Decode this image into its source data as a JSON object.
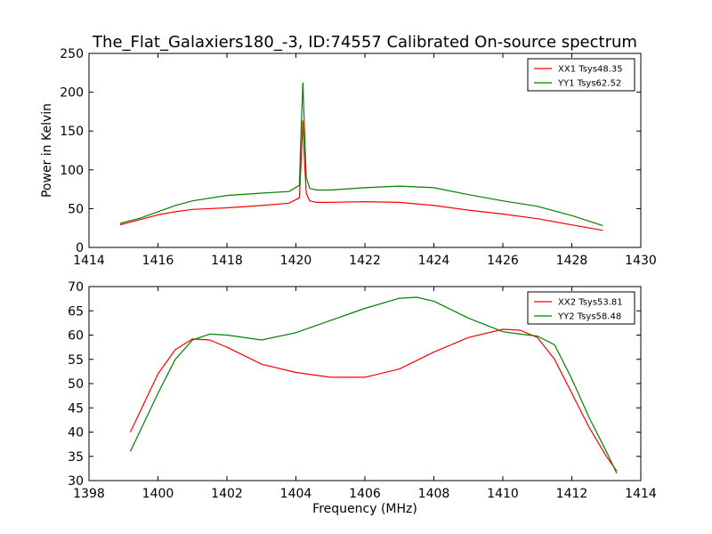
{
  "figure": {
    "title": "The_Flat_Galaxiers180_-3, ID:74557 Calibrated On-source spectrum",
    "xlabel": "Frequency (MHz)",
    "ylabel": "Power in Kelvin"
  },
  "chart_data": [
    {
      "type": "line",
      "xlabel": "",
      "ylabel": "Power in Kelvin",
      "xlim": [
        1414,
        1430
      ],
      "ylim": [
        0,
        250
      ],
      "xticks": [
        1414,
        1416,
        1418,
        1420,
        1422,
        1424,
        1426,
        1428,
        1430
      ],
      "yticks": [
        0,
        50,
        100,
        150,
        200,
        250
      ],
      "grid": false,
      "legend_position": "top-right",
      "series": [
        {
          "name": "XX1 Tsys48.35",
          "color": "#ff0000",
          "x": [
            1414.9,
            1415.5,
            1416,
            1416.5,
            1417,
            1418,
            1419,
            1419.8,
            1420.1,
            1420.15,
            1420.2,
            1420.25,
            1420.3,
            1420.4,
            1420.6,
            1421,
            1422,
            1423,
            1424,
            1425,
            1426,
            1427,
            1428,
            1428.9
          ],
          "y": [
            29,
            36,
            42,
            46,
            49,
            51,
            54,
            57,
            64,
            110,
            163,
            110,
            70,
            60,
            58,
            58,
            59,
            58,
            54,
            48,
            43,
            37,
            29,
            22
          ]
        },
        {
          "name": "YY1 Tsys62.52",
          "color": "#008000",
          "x": [
            1414.9,
            1415.5,
            1416,
            1416.5,
            1417,
            1418,
            1419,
            1419.8,
            1420.1,
            1420.15,
            1420.2,
            1420.25,
            1420.3,
            1420.4,
            1420.6,
            1421,
            1422,
            1423,
            1424,
            1425,
            1426,
            1427,
            1428,
            1428.9
          ],
          "y": [
            31,
            38,
            46,
            54,
            60,
            67,
            70,
            72,
            80,
            150,
            212,
            150,
            90,
            76,
            74,
            74,
            77,
            79,
            77,
            68,
            60,
            53,
            41,
            28
          ]
        }
      ]
    },
    {
      "type": "line",
      "xlabel": "Frequency (MHz)",
      "ylabel": "",
      "xlim": [
        1398,
        1414
      ],
      "ylim": [
        30,
        70
      ],
      "xticks": [
        1398,
        1400,
        1402,
        1404,
        1406,
        1408,
        1410,
        1412,
        1414
      ],
      "yticks": [
        30,
        35,
        40,
        45,
        50,
        55,
        60,
        65,
        70
      ],
      "grid": false,
      "legend_position": "top-right",
      "series": [
        {
          "name": "XX2 Tsys53.81",
          "color": "#ff0000",
          "x": [
            1399.2,
            1399.6,
            1400,
            1400.5,
            1401,
            1401.5,
            1402,
            1403,
            1404,
            1405,
            1406,
            1407,
            1408,
            1409,
            1410,
            1410.5,
            1411,
            1411.5,
            1412,
            1412.5,
            1413,
            1413.3
          ],
          "y": [
            40,
            46,
            52,
            57,
            59.2,
            59,
            57.5,
            54,
            52.3,
            51.3,
            51.3,
            53,
            56.5,
            59.5,
            61.2,
            61,
            59.5,
            55,
            48,
            41,
            35,
            32
          ]
        },
        {
          "name": "YY2 Tsys58.48",
          "color": "#008000",
          "x": [
            1399.2,
            1399.6,
            1400,
            1400.5,
            1401,
            1401.5,
            1402,
            1403,
            1404,
            1405,
            1406,
            1407,
            1407.5,
            1408,
            1409,
            1410,
            1410.5,
            1411,
            1411.5,
            1412,
            1412.5,
            1413,
            1413.3
          ],
          "y": [
            36,
            42,
            48,
            55,
            59,
            60.2,
            60,
            59,
            60.5,
            63,
            65.5,
            67.6,
            67.8,
            67,
            63.5,
            60.7,
            60.2,
            59.8,
            58,
            51,
            43,
            36,
            31.5
          ]
        }
      ]
    }
  ]
}
